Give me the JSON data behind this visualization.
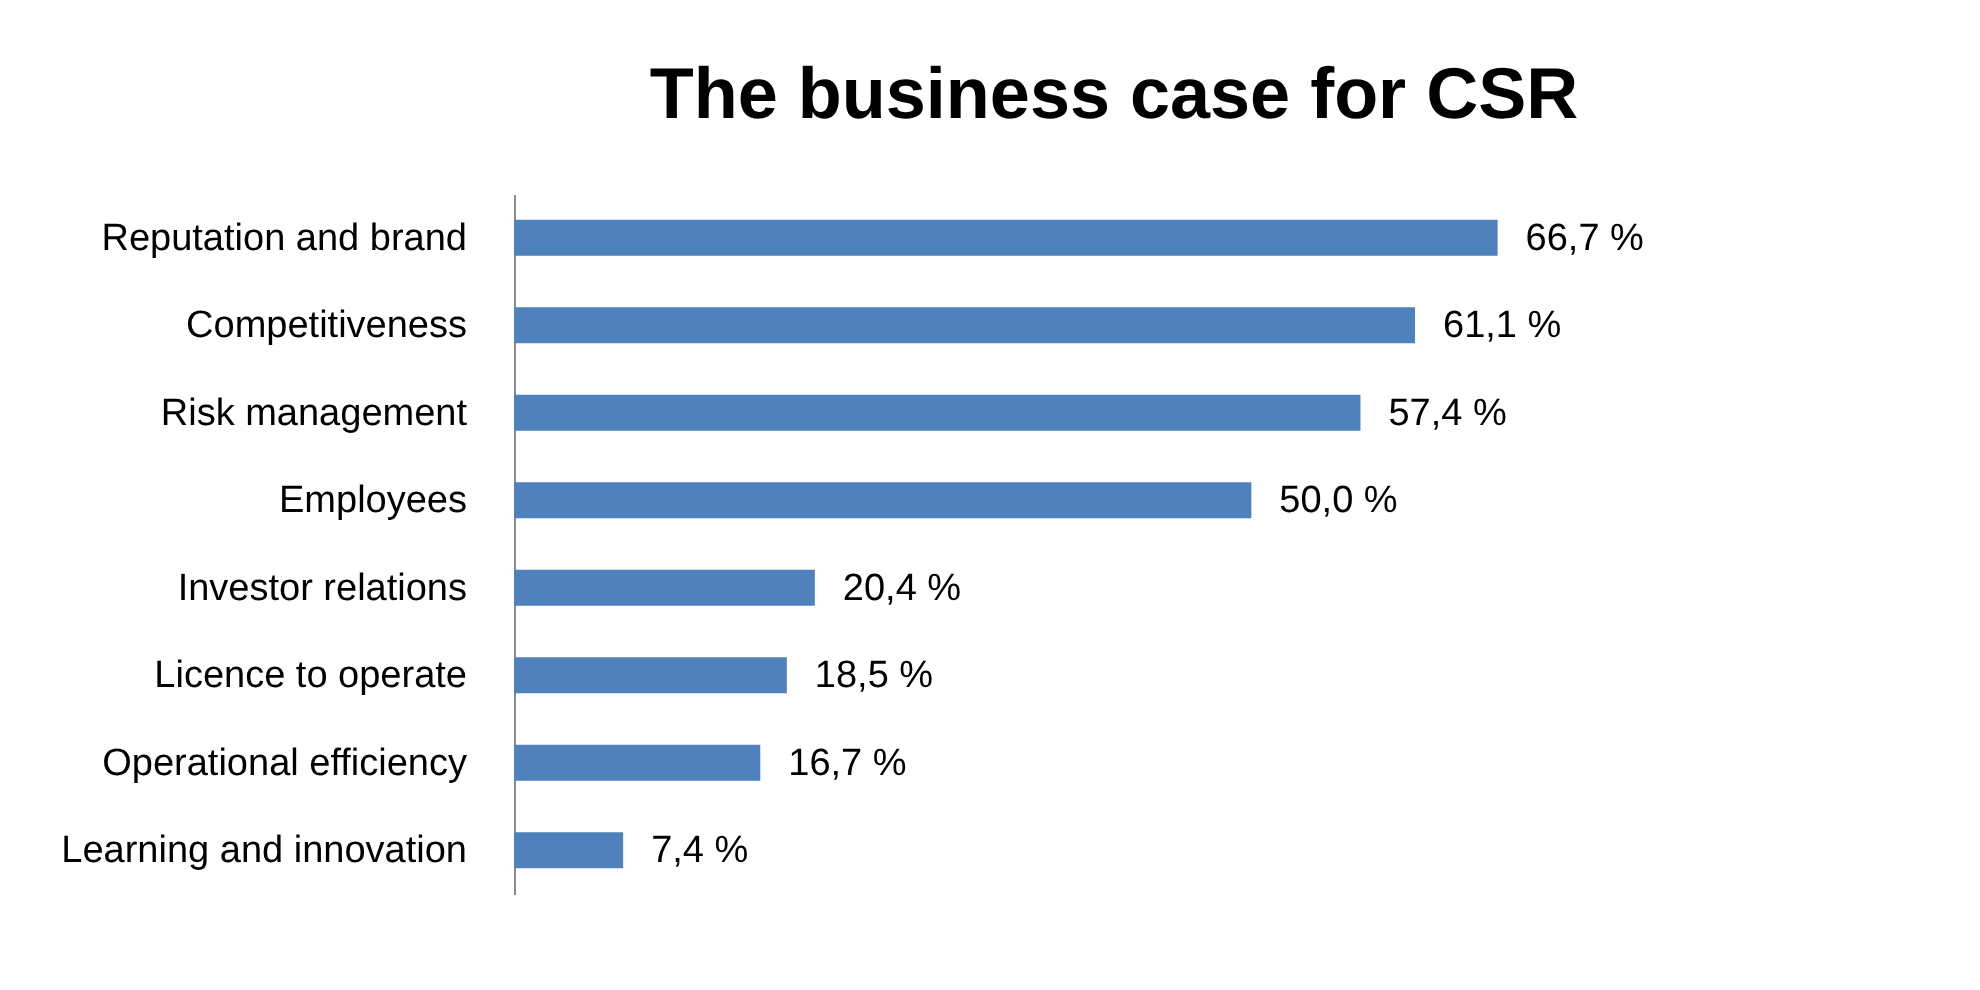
{
  "chart_data": {
    "type": "bar",
    "orientation": "horizontal",
    "title": "The business case for CSR",
    "categories": [
      "Reputation and brand",
      "Competitiveness",
      "Risk management",
      "Employees",
      "Investor relations",
      "Licence to operate",
      "Operational efficiency",
      "Learning and innovation"
    ],
    "values": [
      66.7,
      61.1,
      57.4,
      50.0,
      20.4,
      18.5,
      16.7,
      7.4
    ],
    "value_labels": [
      "66,7 %",
      "61,1 %",
      "57,4 %",
      "50,0 %",
      "20,4 %",
      "18,5 %",
      "16,7 %",
      "7,4 %"
    ],
    "color": "#4f81bd",
    "grid": false
  }
}
